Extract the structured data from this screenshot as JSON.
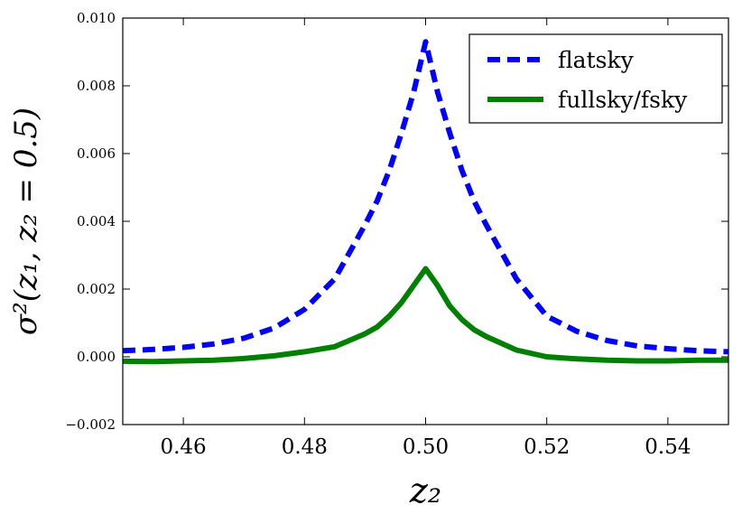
{
  "chart_data": {
    "type": "line",
    "xlabel": "z₂",
    "ylabel": "σ²(z₁, z₂ = 0.5)",
    "xlim": [
      0.45,
      0.55
    ],
    "ylim": [
      -0.002,
      0.01
    ],
    "xticks": [
      0.46,
      0.48,
      0.5,
      0.52,
      0.54
    ],
    "xtick_labels": [
      "0.46",
      "0.48",
      "0.50",
      "0.52",
      "0.54"
    ],
    "yticks": [
      -0.002,
      0.0,
      0.002,
      0.004,
      0.006,
      0.008,
      0.01
    ],
    "ytick_labels": [
      "−0.002",
      "0.000",
      "0.002",
      "0.004",
      "0.006",
      "0.008",
      "0.010"
    ],
    "grid": false,
    "legend_position": "top-right",
    "series": [
      {
        "name": "flatsky",
        "style": "dashed",
        "color": "#0000ff",
        "x": [
          0.45,
          0.455,
          0.46,
          0.465,
          0.47,
          0.475,
          0.48,
          0.485,
          0.49,
          0.492,
          0.494,
          0.496,
          0.498,
          0.5,
          0.502,
          0.504,
          0.506,
          0.508,
          0.51,
          0.515,
          0.52,
          0.525,
          0.53,
          0.535,
          0.54,
          0.545,
          0.55
        ],
        "y": [
          0.00018,
          0.00022,
          0.00028,
          0.00038,
          0.00055,
          0.00085,
          0.0014,
          0.0023,
          0.0039,
          0.0046,
          0.0055,
          0.0066,
          0.0078,
          0.0093,
          0.0078,
          0.0066,
          0.0055,
          0.0046,
          0.0039,
          0.0023,
          0.0012,
          0.00075,
          0.00048,
          0.00032,
          0.00024,
          0.00018,
          0.00015
        ]
      },
      {
        "name": "fullsky/fsky",
        "style": "solid",
        "color": "#008000",
        "x": [
          0.45,
          0.455,
          0.46,
          0.465,
          0.47,
          0.475,
          0.48,
          0.485,
          0.49,
          0.492,
          0.494,
          0.496,
          0.498,
          0.5,
          0.502,
          0.504,
          0.506,
          0.508,
          0.51,
          0.515,
          0.52,
          0.525,
          0.53,
          0.535,
          0.54,
          0.545,
          0.55
        ],
        "y": [
          -0.00013,
          -0.00014,
          -0.00012,
          -0.0001,
          -5e-05,
          3e-05,
          0.00015,
          0.0003,
          0.00068,
          0.00088,
          0.0012,
          0.0016,
          0.0021,
          0.0026,
          0.0021,
          0.0015,
          0.0011,
          0.0008,
          0.0006,
          0.0002,
          0.0,
          -6e-05,
          -0.0001,
          -0.00012,
          -0.00012,
          -0.0001,
          -0.0001
        ]
      }
    ]
  }
}
